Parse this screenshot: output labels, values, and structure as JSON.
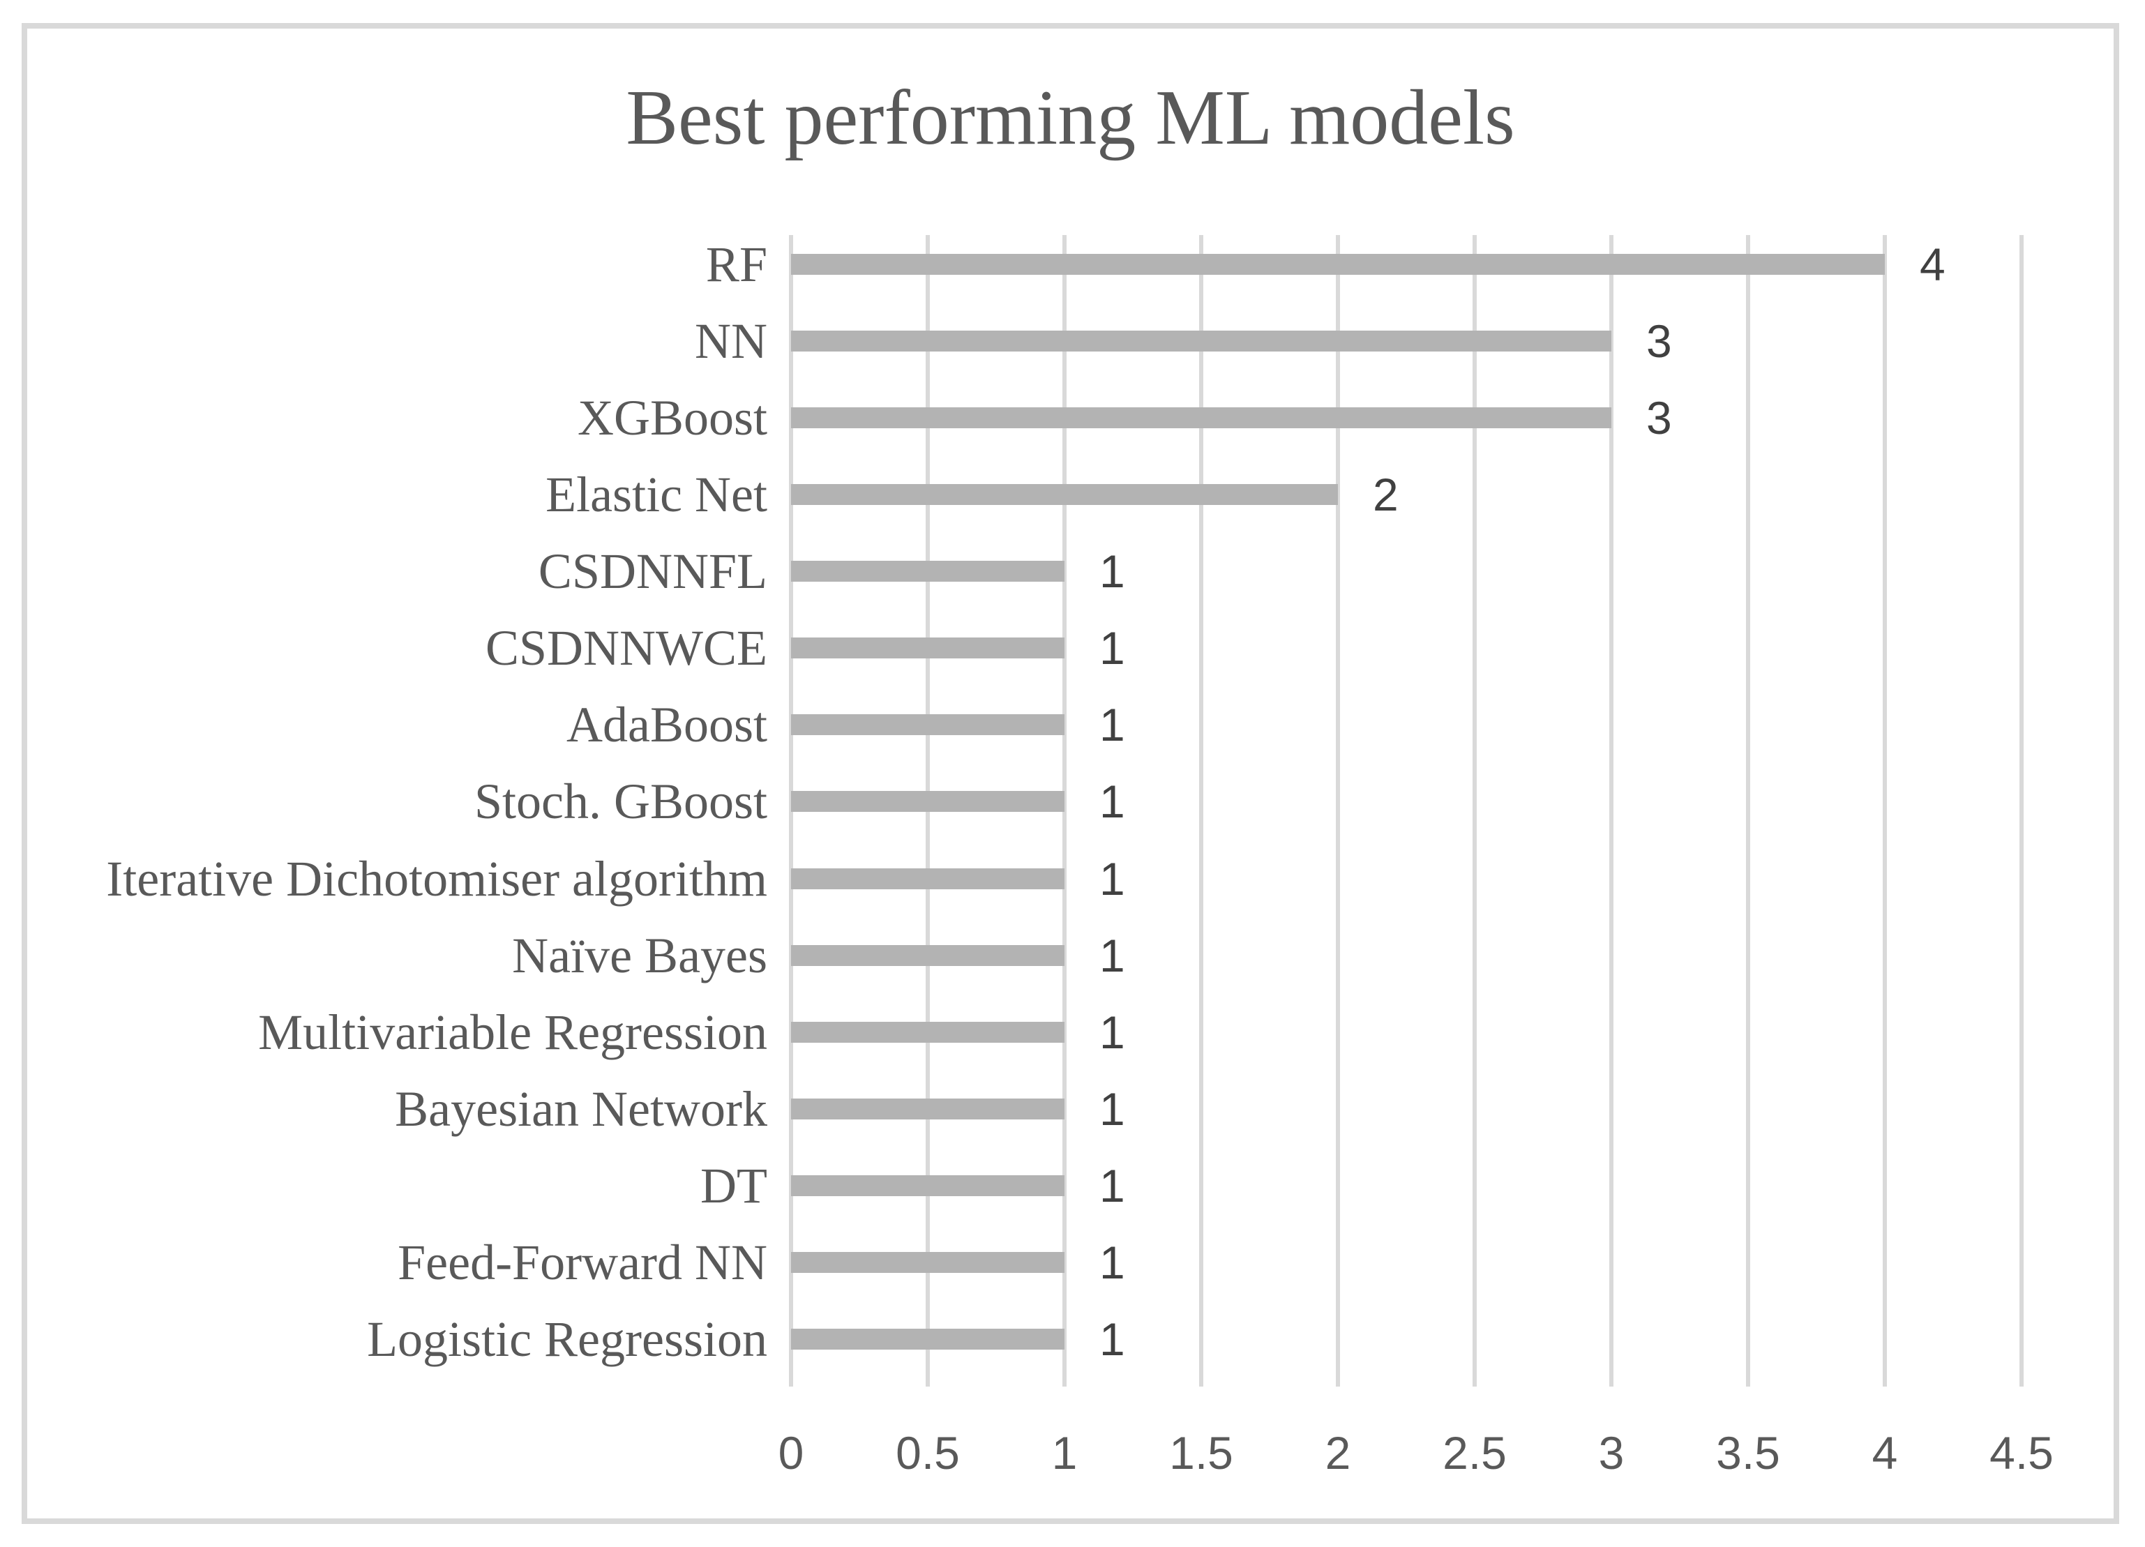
{
  "title": "Best performing ML models",
  "chart_data": {
    "type": "bar",
    "orientation": "horizontal",
    "title": "Best performing ML models",
    "categories": [
      "RF",
      "NN",
      "XGBoost",
      "Elastic Net",
      "CSDNNFL",
      "CSDNNWCE",
      "AdaBoost",
      "Stoch. GBoost",
      "Iterative Dichotomiser algorithm",
      "Naïve Bayes",
      "Multivariable Regression",
      "Bayesian Network",
      "DT",
      "Feed-Forward NN",
      "Logistic Regression"
    ],
    "values": [
      4,
      3,
      3,
      2,
      1,
      1,
      1,
      1,
      1,
      1,
      1,
      1,
      1,
      1,
      1
    ],
    "data_labels": [
      "4",
      "3",
      "3",
      "2",
      "1",
      "1",
      "1",
      "1",
      "1",
      "1",
      "1",
      "1",
      "1",
      "1",
      "1"
    ],
    "xlabel": "",
    "ylabel": "",
    "xlim": [
      0,
      4.5
    ],
    "x_ticks": [
      "0",
      "0.5",
      "1",
      "1.5",
      "2",
      "2.5",
      "3",
      "3.5",
      "4",
      "4.5"
    ],
    "x_tick_values": [
      0,
      0.5,
      1,
      1.5,
      2,
      2.5,
      3,
      3.5,
      4,
      4.5
    ],
    "grid": "vertical-gridlines-on",
    "legend": "none",
    "data_labels_position": "outside-end"
  },
  "colors": {
    "background": "#ffffff",
    "frame_border": "#d9d9d9",
    "bar_fill": "#b3b3b3",
    "gridline": "#d9d9d9",
    "title_text": "#595959",
    "category_text": "#595959",
    "tick_text": "#595959",
    "value_text": "#404040"
  }
}
